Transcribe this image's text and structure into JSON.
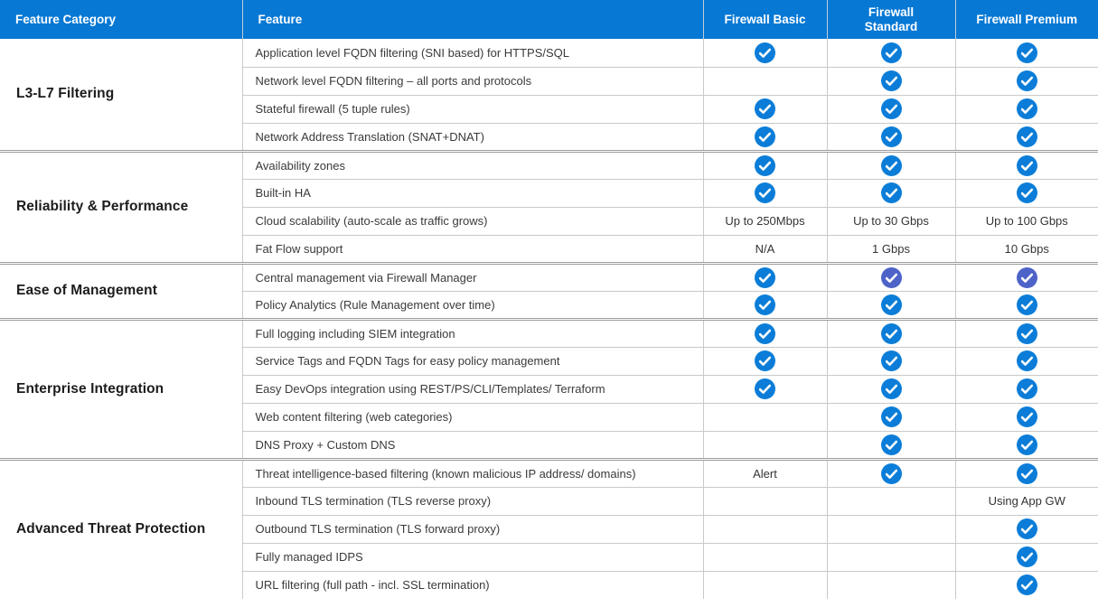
{
  "colors": {
    "header_bg": "#0778d4",
    "check_blue": "#0b7dd8",
    "check_purple": "#4e63c8",
    "row_border": "#c9c9c9",
    "group_border": "#9c9c9c"
  },
  "table": {
    "columns": [
      "Feature Category",
      "Feature",
      "Firewall Basic",
      "Firewall Standard",
      "Firewall Premium"
    ],
    "icon_legend": {
      "check": "check-circle-icon (blue)",
      "check-alt": "check-circle-icon (purple)"
    },
    "groups": [
      {
        "category": "L3-L7 Filtering",
        "rows": [
          {
            "feature": "Application level FQDN filtering (SNI based) for HTTPS/SQL",
            "basic": "check",
            "standard": "check",
            "premium": "check"
          },
          {
            "feature": "Network level FQDN filtering – all ports and protocols",
            "basic": "",
            "standard": "check",
            "premium": "check"
          },
          {
            "feature": "Stateful firewall (5 tuple rules)",
            "basic": "check",
            "standard": "check",
            "premium": "check"
          },
          {
            "feature": "Network Address Translation (SNAT+DNAT)",
            "basic": "check",
            "standard": "check",
            "premium": "check"
          }
        ]
      },
      {
        "category": "Reliability & Performance",
        "rows": [
          {
            "feature": "Availability zones",
            "basic": "check",
            "standard": "check",
            "premium": "check"
          },
          {
            "feature": "Built-in HA",
            "basic": "check",
            "standard": "check",
            "premium": "check"
          },
          {
            "feature": "Cloud scalability (auto-scale as traffic grows)",
            "basic": "Up to 250Mbps",
            "standard": "Up to 30 Gbps",
            "premium": "Up to 100 Gbps"
          },
          {
            "feature": "Fat Flow support",
            "basic": "N/A",
            "standard": "1 Gbps",
            "premium": "10 Gbps"
          }
        ]
      },
      {
        "category": "Ease of Management",
        "rows": [
          {
            "feature": "Central management via Firewall Manager",
            "basic": "check",
            "standard": "check-alt",
            "premium": "check-alt"
          },
          {
            "feature": "Policy Analytics (Rule Management over time)",
            "basic": "check",
            "standard": "check",
            "premium": "check"
          }
        ]
      },
      {
        "category": "Enterprise Integration",
        "rows": [
          {
            "feature": "Full logging including SIEM integration",
            "basic": "check",
            "standard": "check",
            "premium": "check"
          },
          {
            "feature": "Service Tags and FQDN Tags for easy policy management",
            "basic": "check",
            "standard": "check",
            "premium": "check"
          },
          {
            "feature": "Easy DevOps integration using REST/PS/CLI/Templates/ Terraform",
            "basic": "check",
            "standard": "check",
            "premium": "check"
          },
          {
            "feature": "Web content filtering (web categories)",
            "basic": "",
            "standard": "check",
            "premium": "check"
          },
          {
            "feature": "DNS Proxy + Custom DNS",
            "basic": "",
            "standard": "check",
            "premium": "check"
          }
        ]
      },
      {
        "category": "Advanced Threat Protection",
        "rows": [
          {
            "feature": "Threat intelligence-based filtering (known malicious IP address/ domains)",
            "basic": "Alert",
            "standard": "check",
            "premium": "check"
          },
          {
            "feature": "Inbound TLS termination (TLS reverse proxy)",
            "basic": "",
            "standard": "",
            "premium": "Using App GW"
          },
          {
            "feature": "Outbound TLS termination (TLS forward proxy)",
            "basic": "",
            "standard": "",
            "premium": "check"
          },
          {
            "feature": "Fully managed IDPS",
            "basic": "",
            "standard": "",
            "premium": "check"
          },
          {
            "feature": "URL filtering (full path - incl. SSL termination)",
            "basic": "",
            "standard": "",
            "premium": "check"
          }
        ]
      }
    ]
  }
}
